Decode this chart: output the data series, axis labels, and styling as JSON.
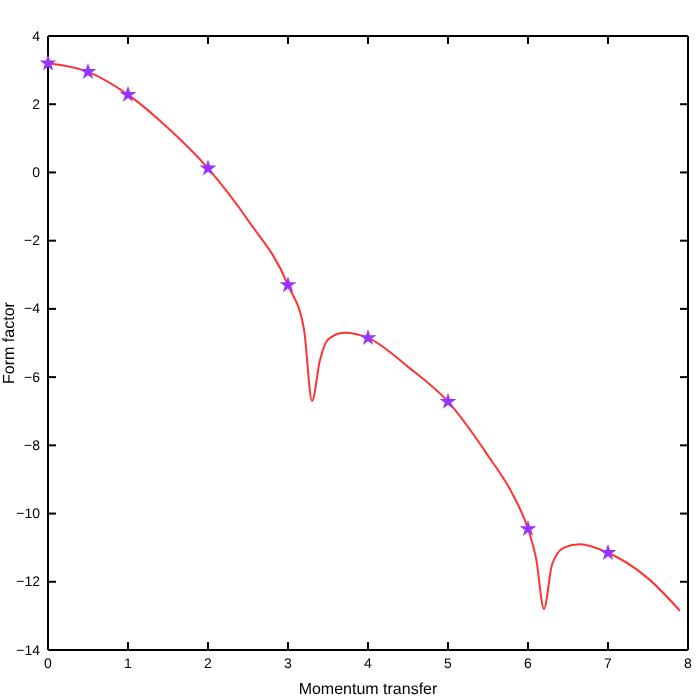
{
  "chart_data": {
    "type": "line",
    "xlabel": "Momentum transfer",
    "ylabel": "Form factor",
    "xlim": [
      0,
      8
    ],
    "ylim": [
      -14,
      4
    ],
    "xticks": [
      0,
      1,
      2,
      3,
      4,
      5,
      6,
      7,
      8
    ],
    "yticks": [
      -14,
      -12,
      -10,
      -8,
      -6,
      -4,
      -2,
      0,
      2,
      4
    ],
    "grid": false,
    "series": [
      {
        "color": "#ff3333",
        "marker": "none",
        "x": [
          0,
          0.5,
          1,
          1.5,
          2,
          2.5,
          3,
          3.2,
          3.3,
          3.4,
          3.5,
          3.7,
          4,
          4.5,
          5,
          5.5,
          5.8,
          6,
          6.1,
          6.2,
          6.3,
          6.45,
          6.65,
          7,
          7.5,
          7.9
        ],
        "values": [
          3.2,
          2.95,
          2.28,
          1.3,
          0.12,
          -1.4,
          -3.3,
          -4.6,
          -6.7,
          -5.5,
          -4.9,
          -4.7,
          -4.85,
          -5.7,
          -6.72,
          -8.3,
          -9.4,
          -10.45,
          -11.3,
          -12.8,
          -11.5,
          -11.0,
          -10.9,
          -11.15,
          -11.9,
          -12.85
        ]
      },
      {
        "type": "scatter",
        "color": "#9933ff",
        "marker": "star",
        "x": [
          0,
          0.5,
          1,
          2,
          3,
          4,
          5,
          6,
          7
        ],
        "values": [
          3.2,
          2.95,
          2.28,
          0.12,
          -3.3,
          -4.85,
          -6.72,
          -10.45,
          -11.15
        ]
      }
    ]
  }
}
